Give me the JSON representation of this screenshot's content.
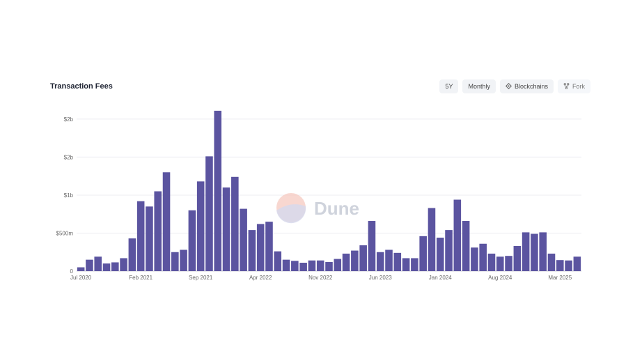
{
  "header": {
    "title": "Transaction Fees",
    "controls": [
      {
        "label": "5Y",
        "icon": ""
      },
      {
        "label": "Monthly",
        "icon": ""
      },
      {
        "label": "Blockchains",
        "icon": "diamond-icon"
      },
      {
        "label": "Fork",
        "icon": "fork-icon"
      }
    ]
  },
  "watermark": {
    "text": "Dune"
  },
  "colors": {
    "bar": "#5b54a0",
    "grid": "#ececf1",
    "axis": "#cfcfd8"
  },
  "chart_data": {
    "type": "bar",
    "title": "Transaction Fees",
    "xlabel": "",
    "ylabel": "",
    "ylim": [
      0,
      2100000000
    ],
    "yticks": [
      {
        "value": 0,
        "label": "0"
      },
      {
        "value": 500000000,
        "label": "$500m"
      },
      {
        "value": 1000000000,
        "label": "$1b"
      },
      {
        "value": 1500000000,
        "label": "$2b"
      },
      {
        "value": 2000000000,
        "label": "$2b"
      }
    ],
    "grid": true,
    "xtick_labels": [
      {
        "index": 0,
        "label": "Jul 2020"
      },
      {
        "index": 7,
        "label": "Feb 2021"
      },
      {
        "index": 14,
        "label": "Sep 2021"
      },
      {
        "index": 21,
        "label": "Apr 2022"
      },
      {
        "index": 28,
        "label": "Nov 2022"
      },
      {
        "index": 35,
        "label": "Jun 2023"
      },
      {
        "index": 42,
        "label": "Jan 2024"
      },
      {
        "index": 49,
        "label": "Aug 2024"
      },
      {
        "index": 56,
        "label": "Mar 2025"
      }
    ],
    "categories": [
      "Jul 2020",
      "Aug 2020",
      "Sep 2020",
      "Oct 2020",
      "Nov 2020",
      "Dec 2020",
      "Jan 2021",
      "Feb 2021",
      "Mar 2021",
      "Apr 2021",
      "May 2021",
      "Jun 2021",
      "Jul 2021",
      "Aug 2021",
      "Sep 2021",
      "Oct 2021",
      "Nov 2021",
      "Dec 2021",
      "Jan 2022",
      "Feb 2022",
      "Mar 2022",
      "Apr 2022",
      "May 2022",
      "Jun 2022",
      "Jul 2022",
      "Aug 2022",
      "Sep 2022",
      "Oct 2022",
      "Nov 2022",
      "Dec 2022",
      "Jan 2023",
      "Feb 2023",
      "Mar 2023",
      "Apr 2023",
      "May 2023",
      "Jun 2023",
      "Jul 2023",
      "Aug 2023",
      "Sep 2023",
      "Oct 2023",
      "Nov 2023",
      "Dec 2023",
      "Jan 2024",
      "Feb 2024",
      "Mar 2024",
      "Apr 2024",
      "May 2024",
      "Jun 2024",
      "Jul 2024",
      "Aug 2024",
      "Sep 2024",
      "Oct 2024",
      "Nov 2024",
      "Dec 2024",
      "Jan 2025",
      "Feb 2025",
      "Mar 2025",
      "Apr 2025",
      "May 2025"
    ],
    "values": [
      50000000,
      150000000,
      190000000,
      100000000,
      115000000,
      170000000,
      430000000,
      920000000,
      850000000,
      1050000000,
      1300000000,
      250000000,
      280000000,
      800000000,
      1180000000,
      1510000000,
      2110000000,
      1100000000,
      1240000000,
      820000000,
      540000000,
      620000000,
      650000000,
      260000000,
      150000000,
      135000000,
      110000000,
      140000000,
      140000000,
      120000000,
      160000000,
      230000000,
      270000000,
      340000000,
      660000000,
      250000000,
      280000000,
      240000000,
      170000000,
      170000000,
      460000000,
      830000000,
      440000000,
      540000000,
      940000000,
      660000000,
      310000000,
      360000000,
      230000000,
      190000000,
      200000000,
      330000000,
      510000000,
      490000000,
      510000000,
      230000000,
      145000000,
      140000000,
      190000000
    ]
  }
}
